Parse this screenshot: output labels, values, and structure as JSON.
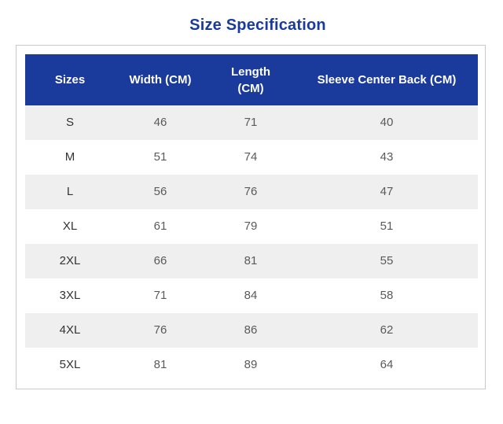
{
  "title": "Size Specification",
  "table": {
    "headers": {
      "size": "Sizes",
      "width": "Width (CM)",
      "length_line1": "Length",
      "length_line2": "(CM)",
      "sleeve": "Sleeve Center Back (CM)"
    },
    "rows": [
      {
        "size": "S",
        "width": "46",
        "length": "71",
        "sleeve": "40"
      },
      {
        "size": "M",
        "width": "51",
        "length": "74",
        "sleeve": "43"
      },
      {
        "size": "L",
        "width": "56",
        "length": "76",
        "sleeve": "47"
      },
      {
        "size": "XL",
        "width": "61",
        "length": "79",
        "sleeve": "51"
      },
      {
        "size": "2XL",
        "width": "66",
        "length": "81",
        "sleeve": "55"
      },
      {
        "size": "3XL",
        "width": "71",
        "length": "84",
        "sleeve": "58"
      },
      {
        "size": "4XL",
        "width": "76",
        "length": "86",
        "sleeve": "62"
      },
      {
        "size": "5XL",
        "width": "81",
        "length": "89",
        "sleeve": "64"
      }
    ]
  },
  "colors": {
    "accent": "#1a3a9c",
    "header_text": "#ffffff",
    "stripe": "#efefef",
    "border": "#c9c9c9"
  }
}
